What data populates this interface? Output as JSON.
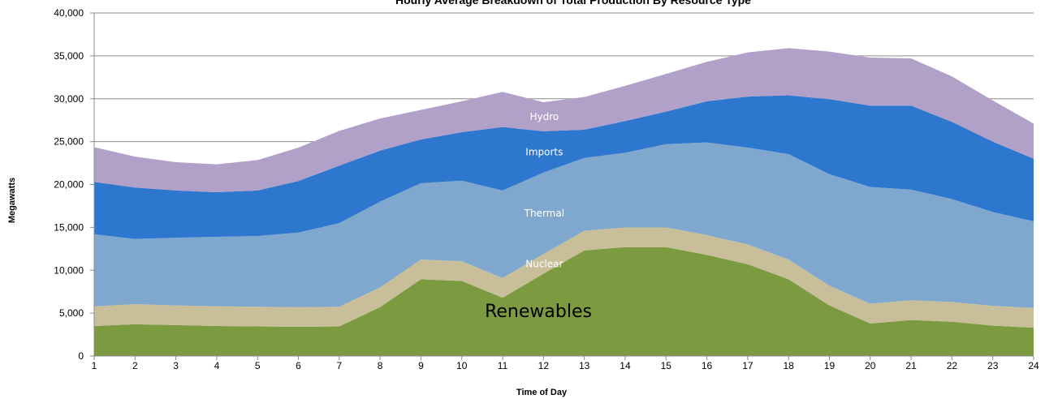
{
  "chart_data": {
    "type": "area",
    "stacked": true,
    "title": "Hourly Average Breakdown of Total Production By Resource Type",
    "xlabel": "Time of Day",
    "ylabel": "Megawatts",
    "x": [
      1,
      2,
      3,
      4,
      5,
      6,
      7,
      8,
      9,
      10,
      11,
      12,
      13,
      14,
      15,
      16,
      17,
      18,
      19,
      20,
      21,
      22,
      23,
      24
    ],
    "ylim": [
      0,
      40000
    ],
    "yticks": [
      0,
      5000,
      10000,
      15000,
      20000,
      25000,
      30000,
      35000,
      40000
    ],
    "ytick_labels": [
      "0",
      "5,000",
      "10,000",
      "15,000",
      "20,000",
      "25,000",
      "30,000",
      "35,000",
      "40,000"
    ],
    "grid": true,
    "legend": "none",
    "series": [
      {
        "name": "Renewables",
        "color": "#7c9a40",
        "values": [
          3500,
          3700,
          3600,
          3500,
          3450,
          3400,
          3450,
          5700,
          8950,
          8750,
          6800,
          9600,
          12300,
          12700,
          12700,
          11800,
          10700,
          8950,
          5900,
          3800,
          4200,
          4000,
          3550,
          3300
        ]
      },
      {
        "name": "Nuclear",
        "color": "#c8bf9a",
        "values": [
          2300,
          2350,
          2300,
          2300,
          2300,
          2300,
          2300,
          2300,
          2300,
          2300,
          2300,
          2300,
          2300,
          2300,
          2300,
          2300,
          2300,
          2300,
          2300,
          2300,
          2300,
          2300,
          2300,
          2300
        ]
      },
      {
        "name": "Thermal",
        "color": "#80a7cd",
        "values": [
          8400,
          7600,
          7900,
          8100,
          8250,
          8700,
          9750,
          10000,
          8900,
          9400,
          10200,
          9500,
          8500,
          8700,
          9700,
          10800,
          11300,
          12300,
          13000,
          13600,
          12900,
          12000,
          10950,
          10100
        ]
      },
      {
        "name": "Imports",
        "color": "#2e77cf",
        "values": [
          6100,
          6000,
          5500,
          5200,
          5300,
          6000,
          6700,
          5950,
          5100,
          5650,
          7400,
          4800,
          3300,
          3700,
          3800,
          4800,
          5950,
          6850,
          8750,
          9500,
          9800,
          9000,
          8200,
          7300
        ]
      },
      {
        "name": "Hydro",
        "color": "#b1a0c7",
        "values": [
          4050,
          3600,
          3300,
          3250,
          3550,
          3900,
          4050,
          3750,
          3450,
          3600,
          4100,
          3400,
          3800,
          4100,
          4400,
          4600,
          5150,
          5500,
          5550,
          5600,
          5500,
          5300,
          4800,
          4100
        ]
      }
    ]
  }
}
